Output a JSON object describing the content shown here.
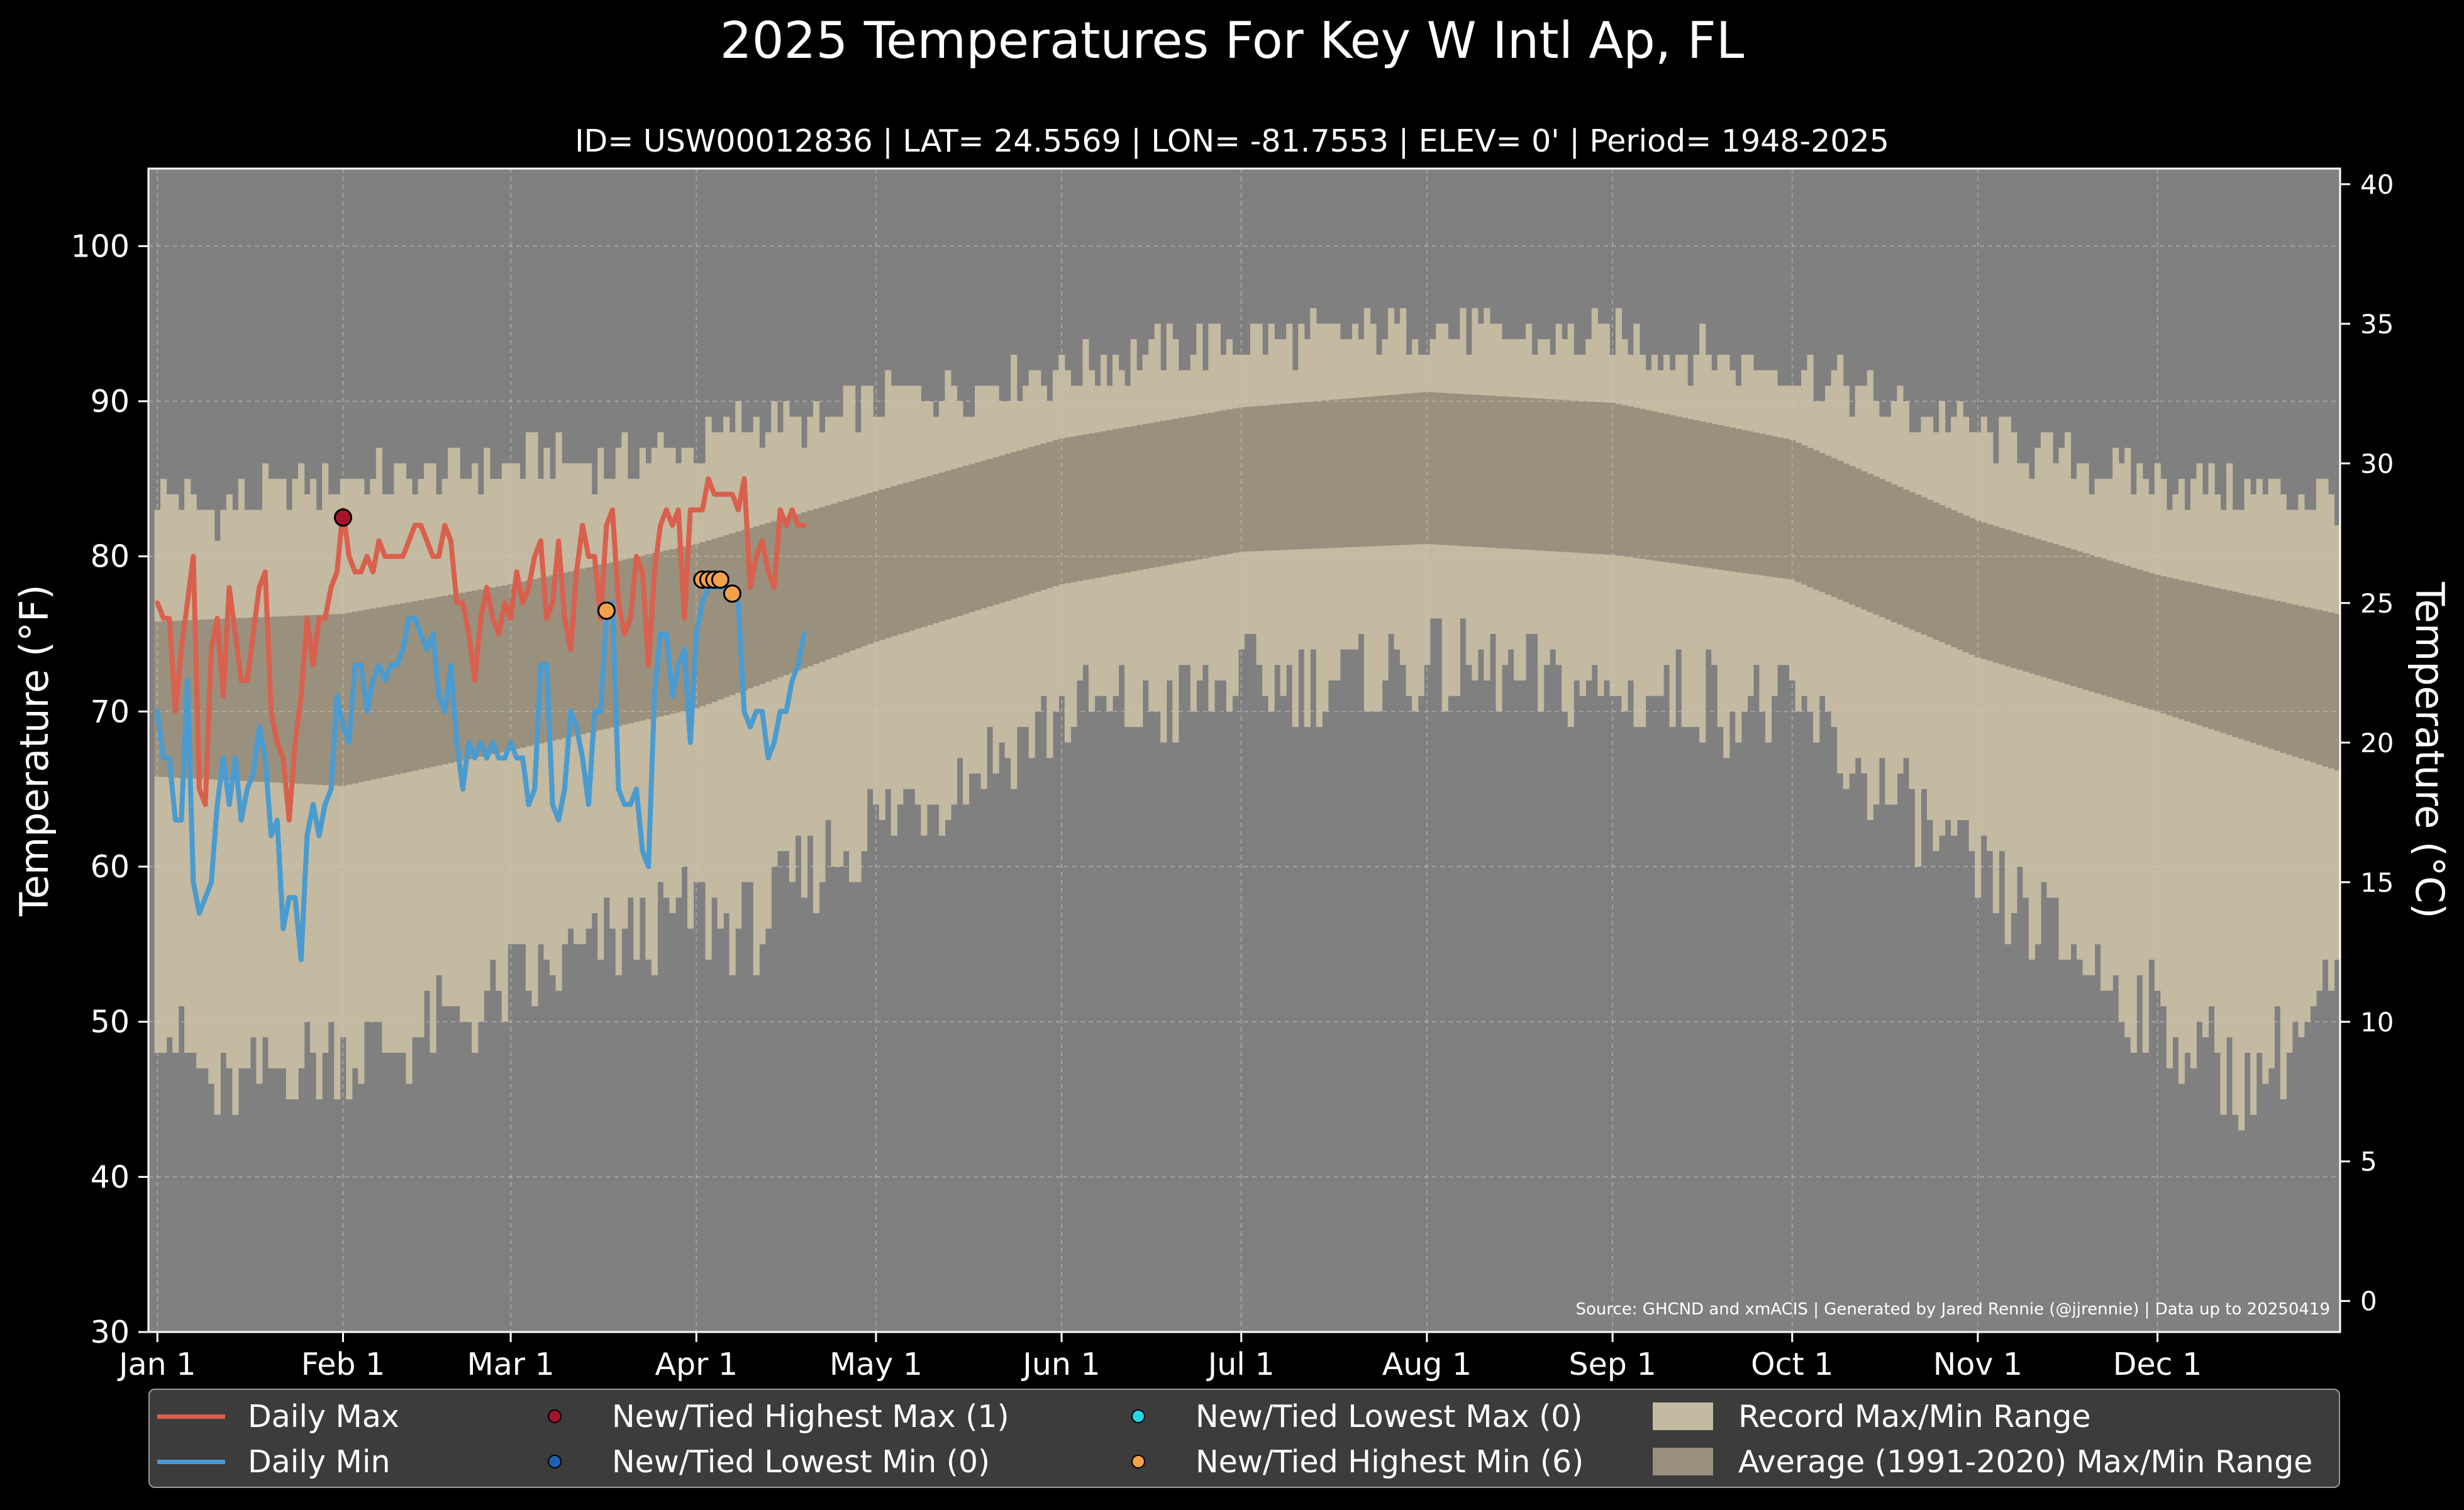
{
  "title": "2025 Temperatures For Key W Intl Ap, FL",
  "subtitle": "ID= USW00012836 | LAT= 24.5569 | LON= -81.7553 | ELEV= 0' | Period= 1948-2025",
  "source": "Source: GHCND and xmACIS | Generated by Jared Rennie (@jjrennie) | Data up to 20250419",
  "colors": {
    "background": "#000000",
    "plot_background": "#808080",
    "record_band": "#c3baa1",
    "normal_band": "#9a907e",
    "daily_max": "#d9604d",
    "daily_min": "#4a9bd0",
    "highest_max_marker": "#a5132a",
    "lowest_min_marker": "#1f63b0",
    "lowest_max_marker": "#22d8e8",
    "highest_min_marker": "#f4a24a"
  },
  "legend": [
    {
      "label": "Daily Max",
      "kind": "line",
      "color": "#d9604d"
    },
    {
      "label": "Daily Min",
      "kind": "line",
      "color": "#4a9bd0"
    },
    {
      "label": "New/Tied Highest Max (1)",
      "kind": "dot",
      "color": "#a5132a"
    },
    {
      "label": "New/Tied Lowest Min (0)",
      "kind": "dot",
      "color": "#1f63b0"
    },
    {
      "label": "New/Tied Lowest Max (0)",
      "kind": "dot",
      "color": "#22d8e8"
    },
    {
      "label": "New/Tied Highest Min (6)",
      "kind": "dot",
      "color": "#f4a24a"
    },
    {
      "label": "Record Max/Min Range",
      "kind": "rect",
      "color": "#c3baa1"
    },
    {
      "label": "Average (1991-2020) Max/Min Range",
      "kind": "rect",
      "color": "#9a907e"
    }
  ],
  "chart_data": {
    "type": "line",
    "title": "2025 Temperatures For Key W Intl Ap, FL",
    "ylabel": "Temperature (°F)",
    "ylabel_right": "Temperature (°C)",
    "ylim": [
      30,
      105
    ],
    "yticks": [
      30,
      40,
      50,
      60,
      70,
      80,
      90,
      100
    ],
    "ylim_right": [
      -1.11,
      40.56
    ],
    "yticks_right": [
      0,
      5,
      10,
      15,
      20,
      25,
      30,
      35,
      40
    ],
    "xlim": [
      -1.5,
      364.5
    ],
    "xtick_labels": [
      "Jan 1",
      "Feb 1",
      "Mar 1",
      "Apr 1",
      "May 1",
      "Jun 1",
      "Jul 1",
      "Aug 1",
      "Sep 1",
      "Oct 1",
      "Nov 1",
      "Dec 1"
    ],
    "xtick_days": [
      0,
      31,
      59,
      90,
      120,
      151,
      181,
      212,
      243,
      273,
      304,
      334
    ],
    "grid": true,
    "legend_position": "bottom",
    "normal_range": {
      "days": [
        0,
        31,
        59,
        90,
        120,
        151,
        181,
        212,
        243,
        273,
        304,
        334,
        364
      ],
      "max": [
        75.8,
        76.3,
        78.2,
        80.8,
        84.2,
        87.6,
        89.6,
        90.6,
        89.9,
        87.5,
        82.3,
        78.8,
        76.3
      ],
      "min": [
        65.8,
        65.2,
        67.5,
        70.2,
        74.5,
        78.2,
        80.3,
        80.8,
        80.1,
        78.5,
        73.5,
        70.0,
        66.2
      ]
    },
    "record_range": {
      "days": [
        0,
        10,
        20,
        31,
        45,
        59,
        75,
        90,
        100,
        110,
        120,
        135,
        151,
        166,
        181,
        196,
        212,
        227,
        243,
        258,
        273,
        288,
        304,
        319,
        334,
        349,
        364
      ],
      "max": [
        84,
        83,
        84,
        85,
        85,
        86,
        86,
        87,
        89,
        88,
        90,
        91,
        92,
        93,
        94,
        94,
        95,
        94,
        94,
        93,
        92,
        90,
        88,
        86,
        85,
        84,
        84
      ],
      "min": [
        51,
        45,
        47,
        48,
        49,
        52,
        55,
        57,
        56,
        60,
        63,
        66,
        70,
        70,
        72,
        72,
        73,
        72,
        71,
        71,
        70,
        65,
        59,
        55,
        50,
        46,
        52
      ]
    },
    "series": [
      {
        "name": "Daily Max",
        "x": [
          0,
          1,
          2,
          3,
          4,
          5,
          6,
          7,
          8,
          9,
          10,
          11,
          12,
          13,
          14,
          15,
          16,
          17,
          18,
          19,
          20,
          21,
          22,
          23,
          24,
          25,
          26,
          27,
          28,
          29,
          30,
          31,
          32,
          33,
          34,
          35,
          36,
          37,
          38,
          39,
          40,
          41,
          42,
          43,
          44,
          45,
          46,
          47,
          48,
          49,
          50,
          51,
          52,
          53,
          54,
          55,
          56,
          57,
          58,
          59,
          60,
          61,
          62,
          63,
          64,
          65,
          66,
          67,
          68,
          69,
          70,
          71,
          72,
          73,
          74,
          75,
          76,
          77,
          78,
          79,
          80,
          81,
          82,
          83,
          84,
          85,
          86,
          87,
          88,
          89,
          90,
          91,
          92,
          93,
          94,
          95,
          96,
          97,
          98,
          99,
          100,
          101,
          102,
          103,
          104,
          105,
          106,
          107,
          108
        ],
        "y": [
          77,
          76,
          76,
          70,
          74,
          77,
          80,
          65,
          64,
          74,
          76,
          71,
          78,
          75,
          72,
          72,
          75,
          78,
          79,
          70,
          68,
          67,
          63,
          68,
          71,
          76,
          73,
          76,
          76,
          78,
          79,
          83,
          80,
          79,
          79,
          80,
          79,
          81,
          80,
          80,
          80,
          80,
          81,
          82,
          82,
          81,
          80,
          80,
          82,
          81,
          77,
          77,
          75,
          72,
          76,
          78,
          76,
          75,
          77,
          76,
          79,
          77,
          78,
          80,
          81,
          76,
          77,
          81,
          76,
          74,
          79,
          82,
          80,
          80,
          76,
          82,
          83,
          77,
          75,
          76,
          80,
          79,
          73,
          79,
          82,
          83,
          82,
          83,
          76,
          83,
          83,
          83,
          85,
          84,
          84,
          84,
          84,
          83,
          85,
          78,
          80,
          81,
          79,
          78,
          83,
          82,
          83,
          82,
          82
        ]
      },
      {
        "name": "Daily Min",
        "x": [
          0,
          1,
          2,
          3,
          4,
          5,
          6,
          7,
          8,
          9,
          10,
          11,
          12,
          13,
          14,
          15,
          16,
          17,
          18,
          19,
          20,
          21,
          22,
          23,
          24,
          25,
          26,
          27,
          28,
          29,
          30,
          31,
          32,
          33,
          34,
          35,
          36,
          37,
          38,
          39,
          40,
          41,
          42,
          43,
          44,
          45,
          46,
          47,
          48,
          49,
          50,
          51,
          52,
          53,
          54,
          55,
          56,
          57,
          58,
          59,
          60,
          61,
          62,
          63,
          64,
          65,
          66,
          67,
          68,
          69,
          70,
          71,
          72,
          73,
          74,
          75,
          76,
          77,
          78,
          79,
          80,
          81,
          82,
          83,
          84,
          85,
          86,
          87,
          88,
          89,
          90,
          91,
          92,
          93,
          94,
          95,
          96,
          97,
          98,
          99,
          100,
          101,
          102,
          103,
          104,
          105,
          106,
          107,
          108
        ],
        "y": [
          70,
          67,
          67,
          63,
          63,
          72,
          59,
          57,
          58,
          59,
          64,
          67,
          64,
          67,
          63,
          65,
          66,
          69,
          67,
          62,
          63,
          56,
          58,
          58,
          54,
          62,
          64,
          62,
          64,
          65,
          71,
          69,
          68,
          73,
          73,
          70,
          72,
          73,
          72,
          73,
          73,
          74,
          76,
          76,
          75,
          74,
          75,
          71,
          70,
          73,
          68,
          65,
          68,
          67,
          68,
          67,
          68,
          67,
          67,
          68,
          67,
          67,
          64,
          65,
          73,
          73,
          64,
          63,
          65,
          70,
          69,
          67,
          64,
          70,
          70,
          76,
          77,
          65,
          64,
          64,
          65,
          61,
          60,
          71,
          75,
          75,
          71,
          73,
          74,
          68,
          75,
          77,
          78,
          78,
          78,
          78,
          78,
          77,
          70,
          69,
          70,
          70,
          67,
          68,
          70,
          70,
          72,
          73,
          75
        ]
      }
    ],
    "record_markers": [
      {
        "name": "New/Tied Highest Max (1)",
        "x": [
          31
        ],
        "y": [
          82.5
        ]
      },
      {
        "name": "New/Tied Lowest Min (0)",
        "x": [],
        "y": []
      },
      {
        "name": "New/Tied Lowest Max (0)",
        "x": [],
        "y": []
      },
      {
        "name": "New/Tied Highest Min (6)",
        "x": [
          75,
          91,
          92,
          93,
          94,
          96
        ],
        "y": [
          76.5,
          78.5,
          78.5,
          78.5,
          78.5,
          77.6
        ]
      }
    ]
  }
}
